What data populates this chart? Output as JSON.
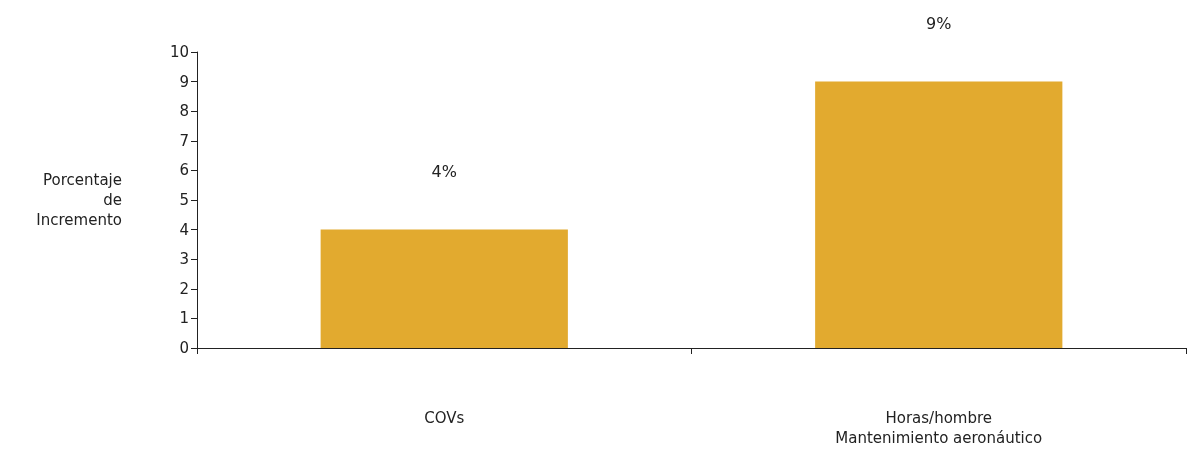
{
  "chart_data": {
    "type": "bar",
    "ylabel": "Porcentaje\nde\nIncremento",
    "categories": [
      "COVs",
      "Horas/hombre\nMantenimiento aeronáutico"
    ],
    "values": [
      4,
      9
    ],
    "value_labels": [
      "4%",
      "9%"
    ],
    "color": "#e2aa2f",
    "ylim": [
      0,
      10
    ],
    "yticks": [
      0,
      1,
      2,
      3,
      4,
      5,
      6,
      7,
      8,
      9,
      10
    ],
    "grid": false
  }
}
